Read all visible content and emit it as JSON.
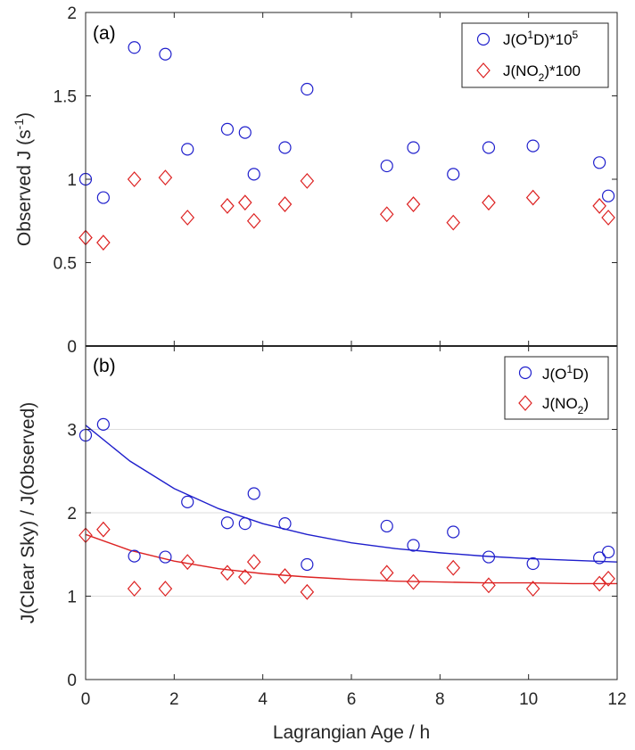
{
  "chart_data": [
    {
      "type": "scatter",
      "panel_label": "(a)",
      "ylabel": "Observed J (s",
      "ylabel_sup": "-1",
      "ylabel_tail": ")",
      "xlim": [
        0,
        12
      ],
      "ylim": [
        0,
        2
      ],
      "yticks": [
        "0",
        "0.5",
        "1",
        "1.5",
        "2"
      ],
      "grid": false,
      "legend_position": "top-right",
      "series": [
        {
          "name": "J(O1D)*10^5",
          "legend": {
            "pre": "J(O",
            "sup1": "1",
            "mid": "D)*10",
            "sup2": "5",
            "post": ""
          },
          "marker": "circle",
          "color": "#1f1fcc",
          "x": [
            0,
            0.4,
            1.1,
            1.8,
            2.3,
            3.2,
            3.6,
            3.8,
            4.5,
            5.0,
            6.8,
            7.4,
            8.3,
            9.1,
            10.1,
            11.6,
            11.8
          ],
          "y": [
            1.0,
            0.89,
            1.79,
            1.75,
            1.18,
            1.3,
            1.28,
            1.03,
            1.19,
            1.54,
            1.08,
            1.19,
            1.03,
            1.19,
            1.2,
            1.1,
            0.9
          ]
        },
        {
          "name": "J(NO2)*100",
          "legend": {
            "pre": "J(NO",
            "sub": "2",
            "post": ")*100"
          },
          "marker": "diamond",
          "color": "#dd2222",
          "x": [
            0,
            0.4,
            1.1,
            1.8,
            2.3,
            3.2,
            3.6,
            3.8,
            4.5,
            5.0,
            6.8,
            7.4,
            8.3,
            9.1,
            10.1,
            11.6,
            11.8
          ],
          "y": [
            0.65,
            0.62,
            1.0,
            1.01,
            0.77,
            0.84,
            0.86,
            0.75,
            0.85,
            0.99,
            0.79,
            0.85,
            0.74,
            0.86,
            0.89,
            0.84,
            0.77
          ]
        }
      ]
    },
    {
      "type": "scatter",
      "panel_label": "(b)",
      "ylabel": "J(Clear Sky) / J(Observed)",
      "xlabel": "Lagrangian Age / h",
      "xlim": [
        0,
        12
      ],
      "ylim": [
        0,
        4
      ],
      "xticks": [
        "0",
        "2",
        "4",
        "6",
        "8",
        "10",
        "12"
      ],
      "yticks": [
        "0",
        "1",
        "2",
        "3"
      ],
      "grid": true,
      "legend_position": "top-right",
      "series": [
        {
          "name": "J(O1D)",
          "legend": {
            "pre": "J(O",
            "sup1": "1",
            "mid": "D)",
            "sup2": "",
            "post": ""
          },
          "marker": "circle",
          "color": "#1f1fcc",
          "x": [
            0,
            0.4,
            1.1,
            1.8,
            2.3,
            3.2,
            3.6,
            3.8,
            4.5,
            5.0,
            6.8,
            7.4,
            8.3,
            9.1,
            10.1,
            11.6,
            11.8
          ],
          "y": [
            2.93,
            3.06,
            1.48,
            1.47,
            2.13,
            1.88,
            1.87,
            2.23,
            1.87,
            1.38,
            1.84,
            1.61,
            1.77,
            1.47,
            1.39,
            1.46,
            1.53
          ],
          "fit": {
            "x": [
              0,
              1,
              2,
              3,
              4,
              5,
              6,
              7,
              8,
              9,
              10,
              11,
              12
            ],
            "y": [
              3.05,
              2.62,
              2.29,
              2.05,
              1.87,
              1.74,
              1.64,
              1.57,
              1.52,
              1.48,
              1.45,
              1.43,
              1.41
            ]
          }
        },
        {
          "name": "J(NO2)",
          "legend": {
            "pre": "J(NO",
            "sub": "2",
            "post": ")"
          },
          "marker": "diamond",
          "color": "#dd2222",
          "x": [
            0,
            0.4,
            1.1,
            1.8,
            2.3,
            3.2,
            3.6,
            3.8,
            4.5,
            5.0,
            6.8,
            7.4,
            8.3,
            9.1,
            10.1,
            11.6,
            11.8
          ],
          "y": [
            1.73,
            1.8,
            1.09,
            1.09,
            1.41,
            1.28,
            1.23,
            1.41,
            1.24,
            1.05,
            1.28,
            1.17,
            1.34,
            1.13,
            1.09,
            1.15,
            1.21
          ],
          "fit": {
            "x": [
              0,
              1,
              2,
              3,
              4,
              5,
              6,
              7,
              8,
              9,
              10,
              11,
              12
            ],
            "y": [
              1.74,
              1.55,
              1.42,
              1.33,
              1.27,
              1.23,
              1.2,
              1.18,
              1.17,
              1.16,
              1.16,
              1.15,
              1.15
            ]
          }
        }
      ]
    }
  ]
}
